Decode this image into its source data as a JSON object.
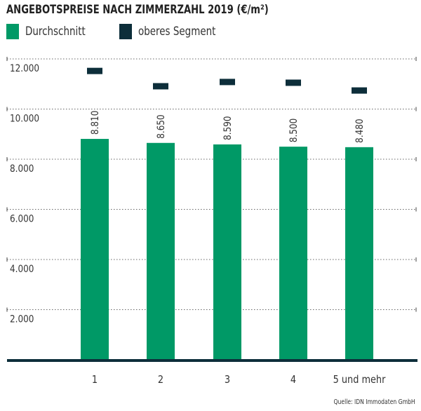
{
  "chart_data": {
    "type": "bar",
    "title": "ANGEBOTSPREISE NACH ZIMMERZAHL 2019 (€/m²)",
    "categories": [
      "1",
      "2",
      "3",
      "4",
      "5 und mehr"
    ],
    "series": [
      {
        "name": "Durchschnitt",
        "type": "bar",
        "color": "#009966",
        "values": [
          8810,
          8650,
          8590,
          8500,
          8480
        ],
        "labels": [
          "8.810",
          "8.650",
          "8.590",
          "8.500",
          "8.480"
        ]
      },
      {
        "name": "oberes Segment",
        "type": "marker",
        "color": "#0d2e3a",
        "values": [
          11520,
          10910,
          11080,
          11050,
          10740
        ]
      }
    ],
    "yticks": [
      2000,
      4000,
      6000,
      8000,
      10000,
      12000
    ],
    "ytick_labels": [
      "2.000",
      "4.000",
      "6.000",
      "8.000",
      "10.000",
      "12.000"
    ],
    "ylim": [
      0,
      12600
    ],
    "grid": "dotted horizontal",
    "legend_placement": "top-left",
    "source": "Quelle: IDN Immodaten GmbH"
  }
}
